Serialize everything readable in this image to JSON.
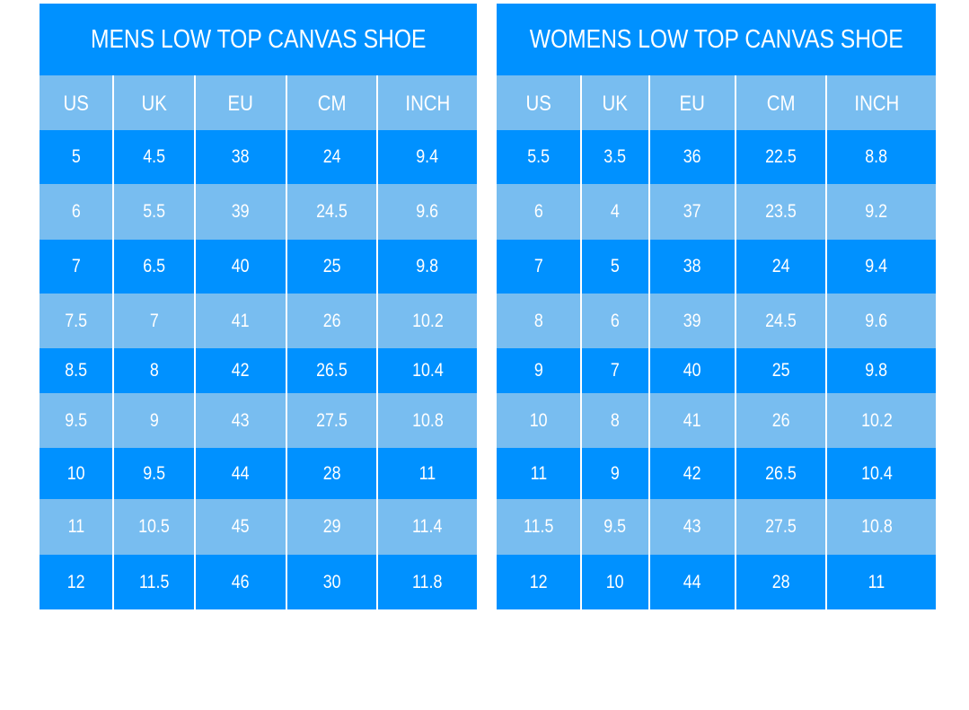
{
  "colors": {
    "dark": "#0091ff",
    "light": "#78bdf0"
  },
  "tables": [
    {
      "title": "MENS LOW TOP CANVAS SHOE",
      "headers": [
        "US",
        "UK",
        "EU",
        "CM",
        "INCH"
      ],
      "rows": [
        [
          "5",
          "4.5",
          "38",
          "24",
          "9.4"
        ],
        [
          "6",
          "5.5",
          "39",
          "24.5",
          "9.6"
        ],
        [
          "7",
          "6.5",
          "40",
          "25",
          "9.8"
        ],
        [
          "7.5",
          "7",
          "41",
          "26",
          "10.2"
        ],
        [
          "8.5",
          "8",
          "42",
          "26.5",
          "10.4"
        ],
        [
          "9.5",
          "9",
          "43",
          "27.5",
          "10.8"
        ],
        [
          "10",
          "9.5",
          "44",
          "28",
          "11"
        ],
        [
          "11",
          "10.5",
          "45",
          "29",
          "11.4"
        ],
        [
          "12",
          "11.5",
          "46",
          "30",
          "11.8"
        ]
      ]
    },
    {
      "title": "WOMENS LOW TOP CANVAS SHOE",
      "headers": [
        "US",
        "UK",
        "EU",
        "CM",
        "INCH"
      ],
      "rows": [
        [
          "5.5",
          "3.5",
          "36",
          "22.5",
          "8.8"
        ],
        [
          "6",
          "4",
          "37",
          "23.5",
          "9.2"
        ],
        [
          "7",
          "5",
          "38",
          "24",
          "9.4"
        ],
        [
          "8",
          "6",
          "39",
          "24.5",
          "9.6"
        ],
        [
          "9",
          "7",
          "40",
          "25",
          "9.8"
        ],
        [
          "10",
          "8",
          "41",
          "26",
          "10.2"
        ],
        [
          "11",
          "9",
          "42",
          "26.5",
          "10.4"
        ],
        [
          "11.5",
          "9.5",
          "43",
          "27.5",
          "10.8"
        ],
        [
          "12",
          "10",
          "44",
          "28",
          "11"
        ]
      ]
    }
  ]
}
